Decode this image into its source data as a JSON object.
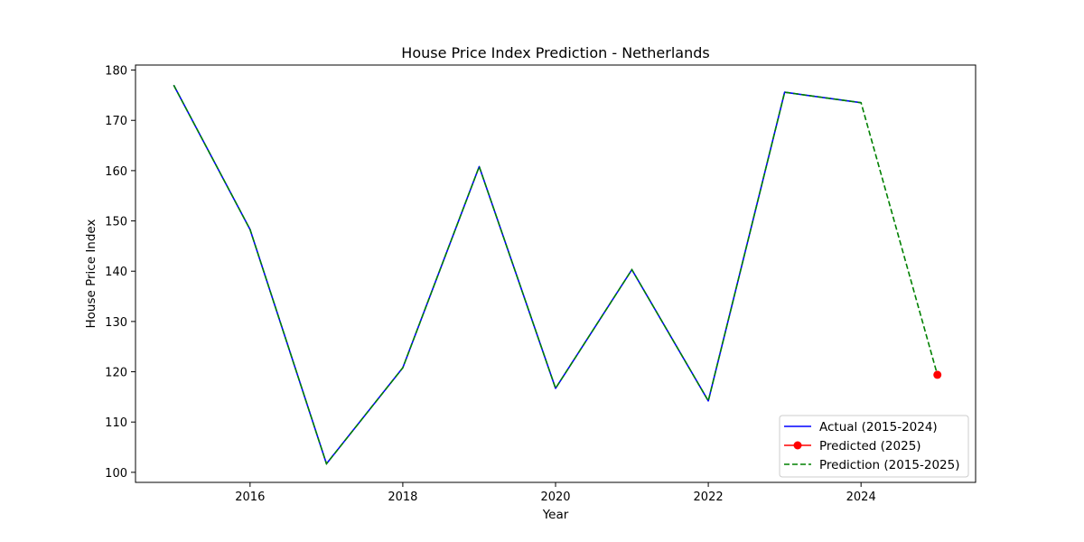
{
  "chart_data": {
    "type": "line",
    "title": "House Price Index Prediction - Netherlands",
    "xlabel": "Year",
    "ylabel": "House Price Index",
    "xlim": [
      2014.5,
      2025.5
    ],
    "ylim": [
      98,
      181
    ],
    "xticks": [
      2016,
      2018,
      2020,
      2022,
      2024
    ],
    "yticks": [
      100,
      110,
      120,
      130,
      140,
      150,
      160,
      170,
      180
    ],
    "grid": false,
    "legend_position": "lower-right",
    "series": [
      {
        "name": "Actual (2015-2024)",
        "style": "solid",
        "color": "#0000ff",
        "x": [
          2015,
          2016,
          2017,
          2018,
          2019,
          2020,
          2021,
          2022,
          2023,
          2024
        ],
        "y": [
          177.0,
          148.3,
          101.7,
          120.8,
          160.8,
          116.7,
          140.3,
          114.2,
          175.6,
          173.5
        ]
      },
      {
        "name": "Predicted (2025)",
        "style": "marker",
        "color": "#ff0000",
        "x": [
          2025
        ],
        "y": [
          119.4
        ]
      },
      {
        "name": "Prediction (2015-2025)",
        "style": "dashed",
        "color": "#008000",
        "x": [
          2015,
          2016,
          2017,
          2018,
          2019,
          2020,
          2021,
          2022,
          2023,
          2024,
          2025
        ],
        "y": [
          177.0,
          148.3,
          101.7,
          120.8,
          160.8,
          116.7,
          140.3,
          114.2,
          175.6,
          173.5,
          119.4
        ]
      }
    ]
  }
}
